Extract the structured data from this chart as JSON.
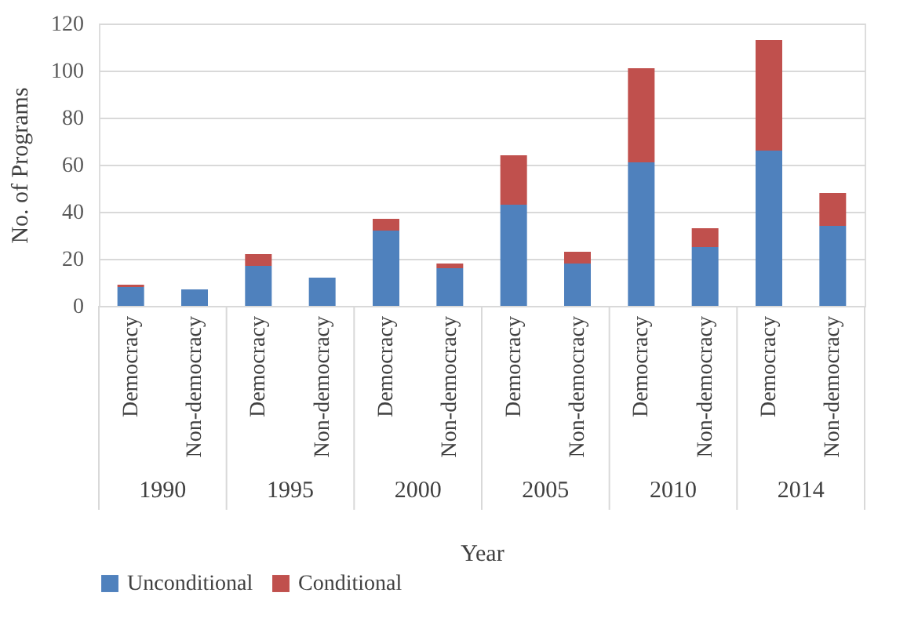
{
  "chart_data": {
    "type": "bar",
    "stacked": true,
    "categories": [
      "Democracy",
      "Non-democracy",
      "Democracy",
      "Non-democracy",
      "Democracy",
      "Non-democracy",
      "Democracy",
      "Non-democracy",
      "Democracy",
      "Non-democracy",
      "Democracy",
      "Non-democracy"
    ],
    "annotations": [
      "1990",
      "1995",
      "2000",
      "2005",
      "2010",
      "2014"
    ],
    "xlabel": "Year",
    "ylabel": "No. of Programs",
    "series": [
      {
        "name": "Unconditional",
        "color": "#4f81bd",
        "values": [
          8,
          7,
          17,
          12,
          32,
          16,
          43,
          18,
          61,
          25,
          66,
          34
        ]
      },
      {
        "name": "Conditional",
        "color": "#c0504d",
        "values": [
          1,
          0,
          5,
          0,
          5,
          2,
          21,
          5,
          40,
          8,
          47,
          14
        ]
      }
    ],
    "ylim": [
      0,
      120
    ],
    "yticks": [
      0,
      20,
      40,
      60,
      80,
      100,
      120
    ],
    "grid": "y",
    "legend": "bottom"
  }
}
